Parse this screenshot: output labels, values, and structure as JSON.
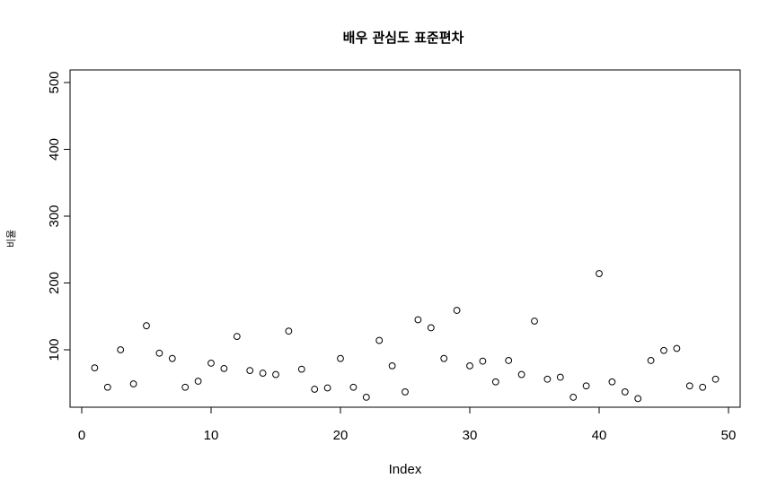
{
  "chart_data": {
    "type": "scatter",
    "title": "배우 관심도 표준편차",
    "xlabel": "Index",
    "ylabel": "비율",
    "xlim": [
      0,
      50
    ],
    "ylim": [
      0,
      500
    ],
    "xticks": [
      0,
      10,
      20,
      30,
      40,
      50
    ],
    "yticks": [
      100,
      200,
      300,
      400,
      500
    ],
    "grid": false,
    "x": [
      1,
      2,
      3,
      4,
      5,
      6,
      7,
      8,
      9,
      10,
      11,
      12,
      13,
      14,
      15,
      16,
      17,
      18,
      19,
      20,
      21,
      22,
      23,
      24,
      25,
      26,
      27,
      28,
      29,
      30,
      31,
      32,
      33,
      34,
      35,
      36,
      37,
      38,
      39,
      40,
      41,
      42,
      43,
      44,
      45,
      46,
      47,
      48,
      49
    ],
    "y": [
      73,
      44,
      100,
      49,
      136,
      95,
      87,
      44,
      53,
      80,
      72,
      120,
      69,
      65,
      63,
      128,
      71,
      41,
      43,
      87,
      44,
      29,
      114,
      76,
      37,
      145,
      133,
      87,
      159,
      76,
      83,
      52,
      84,
      63,
      143,
      56,
      59,
      29,
      46,
      214,
      52,
      37,
      27,
      84,
      99,
      102,
      46,
      44,
      56
    ]
  }
}
